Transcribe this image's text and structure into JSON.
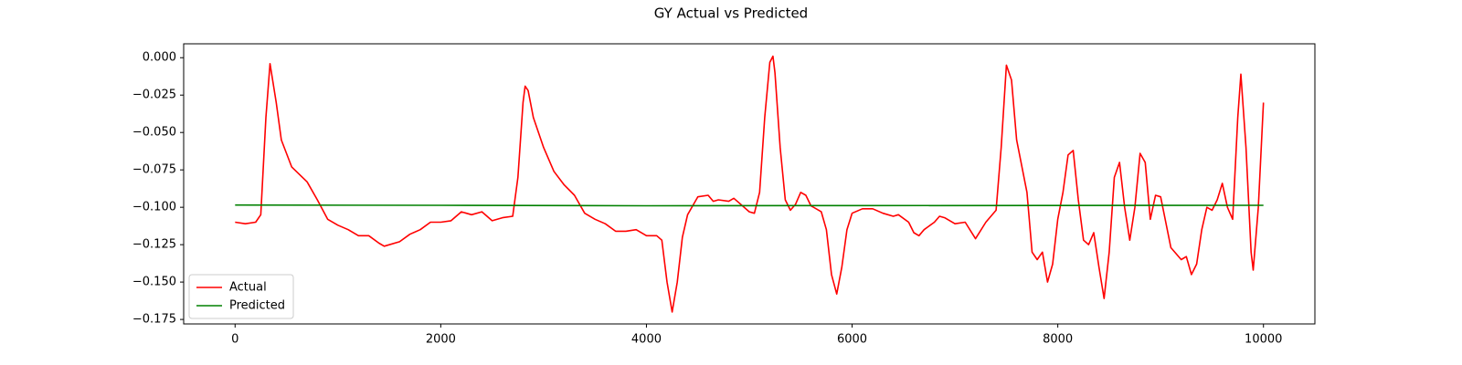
{
  "chart_data": {
    "type": "line",
    "title": "GY Actual vs Predicted",
    "xlim": [
      -500,
      10500
    ],
    "xticks": [
      0,
      2000,
      4000,
      6000,
      8000,
      10000
    ],
    "ylim": [
      -0.178,
      0.0093
    ],
    "yticks": [
      {
        "value": 0,
        "label": "0.000"
      },
      {
        "value": -0.025,
        "label": "−0.025"
      },
      {
        "value": -0.05,
        "label": "−0.050"
      },
      {
        "value": -0.075,
        "label": "−0.075"
      },
      {
        "value": -0.1,
        "label": "−0.100"
      },
      {
        "value": -0.125,
        "label": "−0.125"
      },
      {
        "value": -0.15,
        "label": "−0.150"
      },
      {
        "value": -0.175,
        "label": "−0.175"
      }
    ],
    "grid": false,
    "legend": "lower left",
    "series": [
      {
        "name": "Actual",
        "color": "#ff0000",
        "x": [
          0,
          100,
          200,
          250,
          300,
          340,
          400,
          450,
          550,
          700,
          800,
          900,
          1000,
          1100,
          1200,
          1300,
          1400,
          1450,
          1600,
          1700,
          1800,
          1900,
          2000,
          2100,
          2200,
          2300,
          2400,
          2500,
          2600,
          2700,
          2750,
          2800,
          2820,
          2850,
          2900,
          3000,
          3100,
          3200,
          3300,
          3400,
          3500,
          3600,
          3700,
          3800,
          3900,
          4000,
          4100,
          4150,
          4200,
          4250,
          4300,
          4350,
          4400,
          4500,
          4600,
          4650,
          4700,
          4800,
          4850,
          4900,
          5000,
          5050,
          5100,
          5150,
          5200,
          5230,
          5250,
          5300,
          5350,
          5400,
          5450,
          5500,
          5550,
          5600,
          5700,
          5750,
          5800,
          5850,
          5900,
          5950,
          6000,
          6100,
          6200,
          6300,
          6400,
          6450,
          6550,
          6600,
          6650,
          6700,
          6800,
          6850,
          6900,
          7000,
          7100,
          7200,
          7300,
          7400,
          7450,
          7500,
          7550,
          7600,
          7700,
          7750,
          7800,
          7850,
          7900,
          7950,
          8000,
          8050,
          8100,
          8150,
          8200,
          8250,
          8300,
          8350,
          8400,
          8450,
          8500,
          8550,
          8600,
          8650,
          8700,
          8750,
          8800,
          8850,
          8900,
          8950,
          9000,
          9050,
          9100,
          9200,
          9250,
          9300,
          9350,
          9400,
          9450,
          9500,
          9550,
          9600,
          9650,
          9700,
          9750,
          9780,
          9830,
          9880,
          9900,
          9950,
          10000
        ],
        "values": [
          -0.11,
          -0.111,
          -0.11,
          -0.105,
          -0.04,
          -0.004,
          -0.03,
          -0.055,
          -0.073,
          -0.083,
          -0.095,
          -0.108,
          -0.112,
          -0.115,
          -0.119,
          -0.119,
          -0.124,
          -0.126,
          -0.123,
          -0.118,
          -0.115,
          -0.11,
          -0.11,
          -0.109,
          -0.103,
          -0.105,
          -0.103,
          -0.109,
          -0.107,
          -0.106,
          -0.08,
          -0.03,
          -0.019,
          -0.022,
          -0.04,
          -0.06,
          -0.076,
          -0.085,
          -0.092,
          -0.104,
          -0.108,
          -0.111,
          -0.116,
          -0.116,
          -0.115,
          -0.119,
          -0.119,
          -0.122,
          -0.15,
          -0.17,
          -0.15,
          -0.12,
          -0.105,
          -0.093,
          -0.092,
          -0.096,
          -0.095,
          -0.096,
          -0.094,
          -0.097,
          -0.103,
          -0.104,
          -0.09,
          -0.04,
          -0.003,
          0.001,
          -0.01,
          -0.06,
          -0.095,
          -0.102,
          -0.098,
          -0.09,
          -0.092,
          -0.099,
          -0.103,
          -0.115,
          -0.145,
          -0.158,
          -0.14,
          -0.115,
          -0.104,
          -0.101,
          -0.101,
          -0.104,
          -0.106,
          -0.105,
          -0.11,
          -0.117,
          -0.119,
          -0.115,
          -0.11,
          -0.106,
          -0.107,
          -0.111,
          -0.11,
          -0.121,
          -0.11,
          -0.102,
          -0.06,
          -0.005,
          -0.015,
          -0.055,
          -0.09,
          -0.13,
          -0.135,
          -0.13,
          -0.15,
          -0.138,
          -0.108,
          -0.09,
          -0.065,
          -0.062,
          -0.095,
          -0.122,
          -0.125,
          -0.117,
          -0.14,
          -0.161,
          -0.13,
          -0.08,
          -0.07,
          -0.1,
          -0.122,
          -0.1,
          -0.064,
          -0.07,
          -0.108,
          -0.092,
          -0.093,
          -0.11,
          -0.127,
          -0.135,
          -0.133,
          -0.145,
          -0.138,
          -0.115,
          -0.1,
          -0.102,
          -0.095,
          -0.084,
          -0.1,
          -0.108,
          -0.04,
          -0.011,
          -0.06,
          -0.13,
          -0.142,
          -0.1,
          -0.03
        ]
      },
      {
        "name": "Predicted",
        "color": "#008000",
        "x": [
          0,
          2000,
          4000,
          6000,
          8000,
          10000
        ],
        "values": [
          -0.0985,
          -0.0987,
          -0.099,
          -0.0989,
          -0.0988,
          -0.0987
        ]
      }
    ]
  }
}
